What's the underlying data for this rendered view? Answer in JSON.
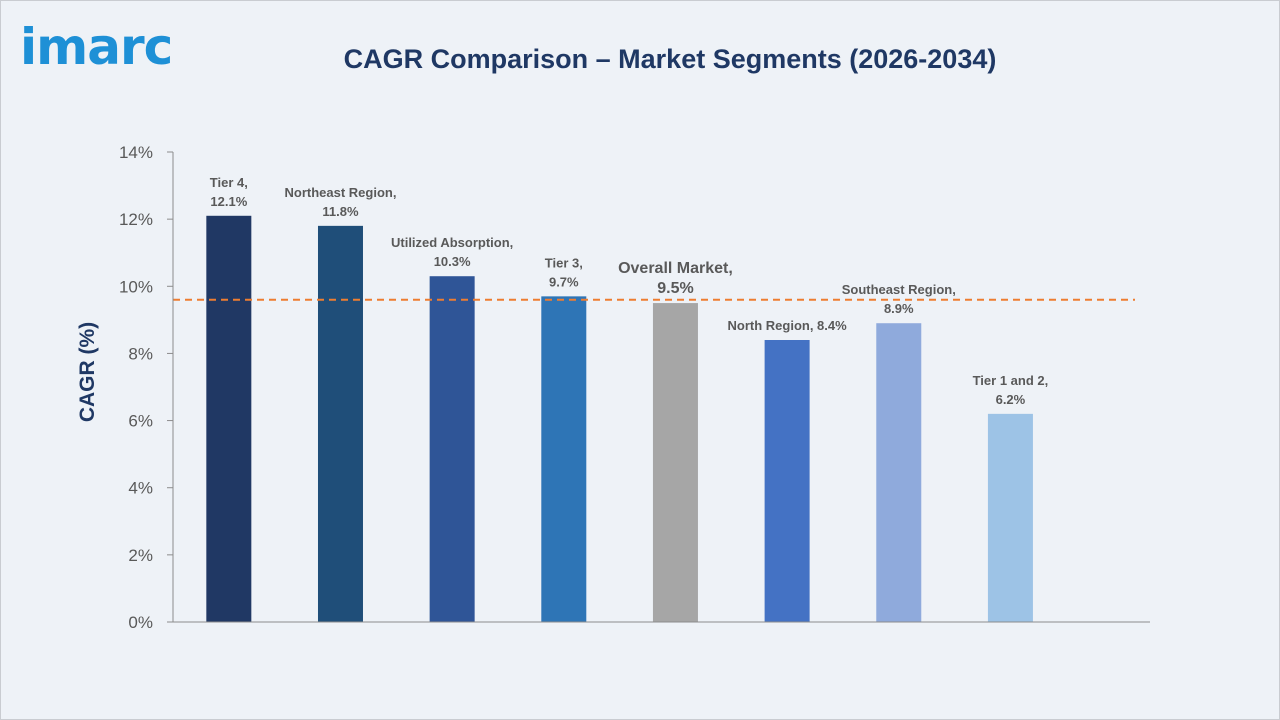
{
  "logo": {
    "text": "imarc"
  },
  "chart_data": {
    "type": "bar",
    "title": "CAGR Comparison – Market Segments (2026-2034)",
    "xlabel": "",
    "ylabel": "CAGR (%)",
    "ylim": [
      0,
      14
    ],
    "yticks": [
      "0%",
      "2%",
      "4%",
      "6%",
      "8%",
      "10%",
      "12%",
      "14%"
    ],
    "grid": false,
    "reference_line": {
      "value": 9.6,
      "style": "dashed",
      "color": "#ED7D31"
    },
    "categories": [
      "Tier 4",
      "Northeast Region",
      "Utilized Absorption",
      "Tier 3",
      "Overall Market",
      "North Region",
      "Southeast Region",
      "Tier 1 and 2"
    ],
    "values": [
      12.1,
      11.8,
      10.3,
      9.7,
      9.5,
      8.4,
      8.9,
      6.2
    ],
    "colors": [
      "#203864",
      "#1F4E79",
      "#2F5597",
      "#2E75B6",
      "#A6A6A6",
      "#4472C4",
      "#8FAADC",
      "#9DC3E6"
    ],
    "data_labels": [
      [
        "Tier 4,",
        "12.1%"
      ],
      [
        "Northeast Region,",
        "11.8%"
      ],
      [
        "Utilized Absorption,",
        "10.3%"
      ],
      [
        "Tier 3,",
        "9.7%"
      ],
      [
        "Overall Market,",
        "9.5%"
      ],
      [
        "North Region, 8.4%"
      ],
      [
        "Southeast Region,",
        "8.9%"
      ],
      [
        "Tier 1 and 2,",
        "6.2%"
      ]
    ]
  }
}
